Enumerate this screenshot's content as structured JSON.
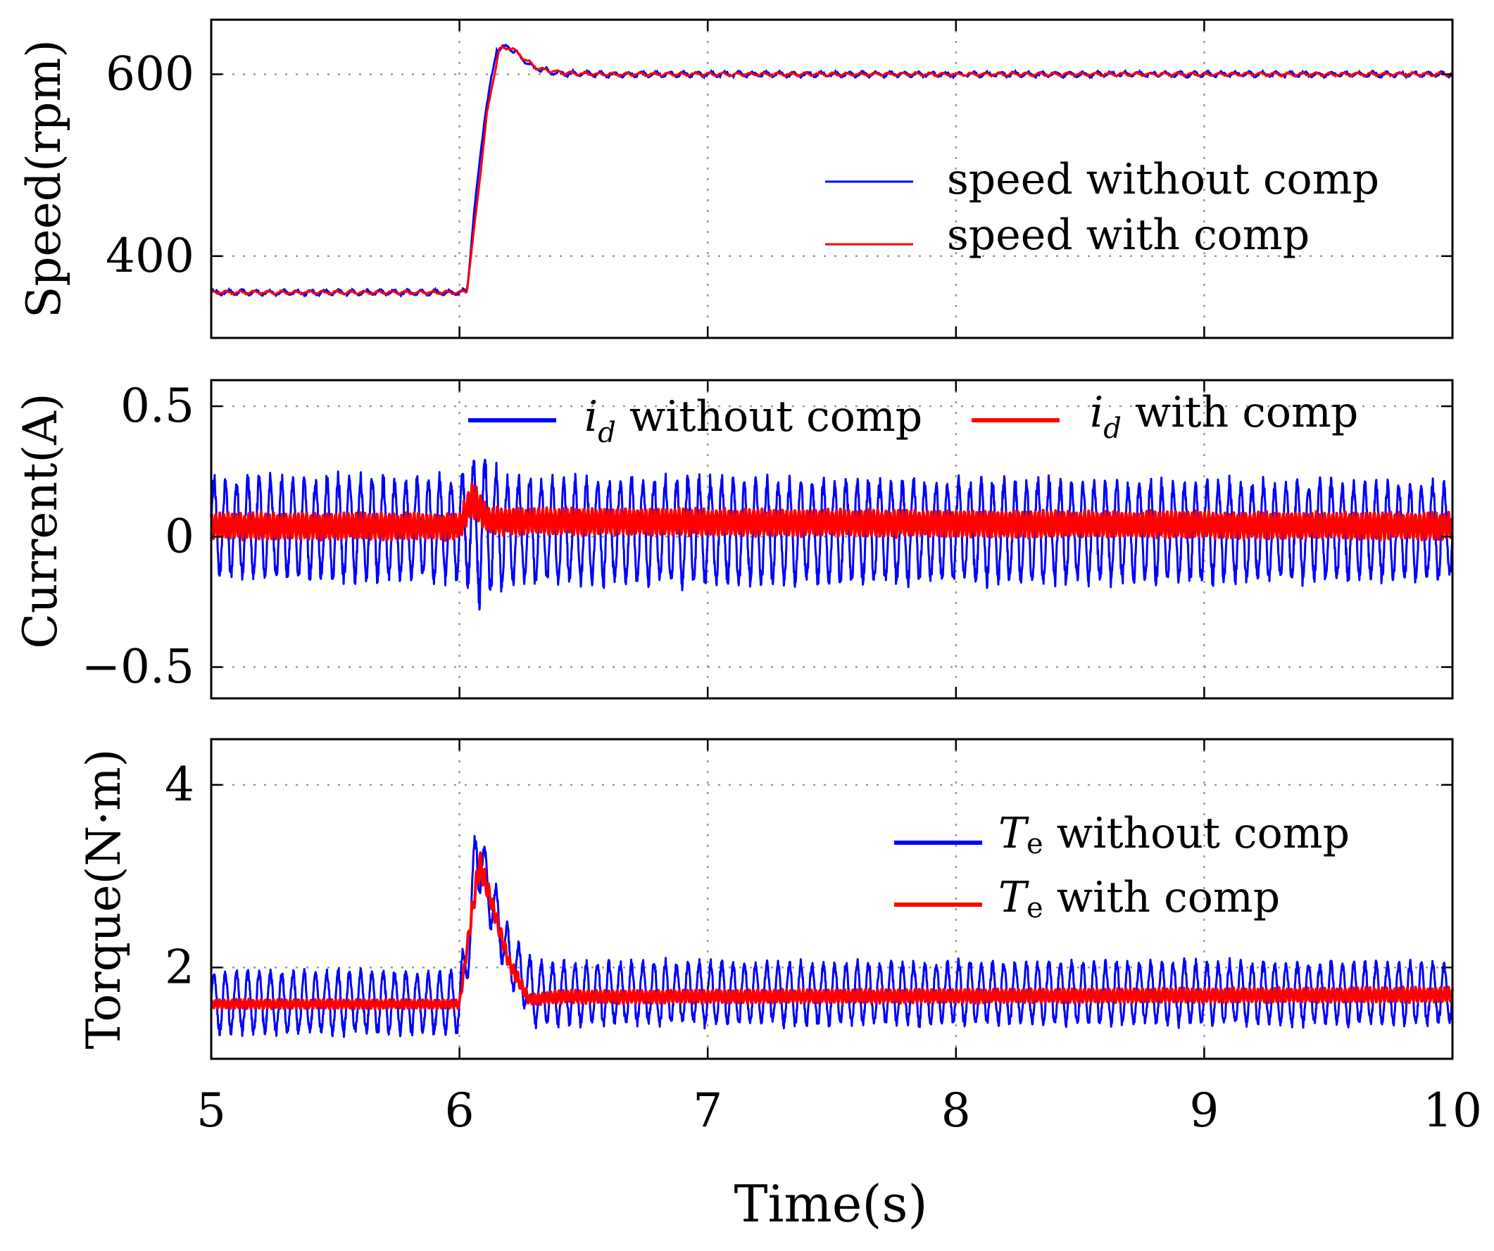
{
  "figure": {
    "xaxis": {
      "label": "Time(s)",
      "range": [
        5,
        10
      ],
      "ticks": [
        5,
        6,
        7,
        8,
        9,
        10
      ],
      "tick_labels": [
        "5",
        "6",
        "7",
        "8",
        "9",
        "10"
      ]
    }
  },
  "chart_data": [
    {
      "type": "line",
      "panel": "speed",
      "ylabel": "Speed(rpm)",
      "ylim": [
        310,
        660
      ],
      "yticks": [
        400,
        600
      ],
      "ytick_labels": [
        "400",
        "600"
      ],
      "grid": true,
      "legend": {
        "placement": "middle-right",
        "entries": [
          {
            "label": "speed without comp",
            "color": "#0000ff"
          },
          {
            "label": "speed with comp",
            "color": "#ff0000"
          }
        ]
      },
      "series": [
        {
          "name": "speed without comp",
          "color": "#0000ff",
          "points": [
            [
              5.0,
              360
            ],
            [
              6.0,
              360
            ],
            [
              6.03,
              362
            ],
            [
              6.06,
              450
            ],
            [
              6.1,
              550
            ],
            [
              6.15,
              628
            ],
            [
              6.2,
              630
            ],
            [
              6.25,
              618
            ],
            [
              6.3,
              607
            ],
            [
              6.4,
              601
            ],
            [
              6.6,
              600
            ],
            [
              10.0,
              600
            ]
          ],
          "ripple": 2.5
        },
        {
          "name": "speed with comp",
          "color": "#ff0000",
          "points": [
            [
              5.0,
              360
            ],
            [
              6.0,
              360
            ],
            [
              6.03,
              362
            ],
            [
              6.07,
              455
            ],
            [
              6.11,
              555
            ],
            [
              6.16,
              628
            ],
            [
              6.21,
              629
            ],
            [
              6.26,
              617
            ],
            [
              6.32,
              606
            ],
            [
              6.42,
              601
            ],
            [
              6.6,
              600
            ],
            [
              10.0,
              600
            ]
          ],
          "ripple": 1.5
        }
      ]
    },
    {
      "type": "line",
      "panel": "current",
      "ylabel": "Current(A)",
      "ylim": [
        -0.62,
        0.6
      ],
      "yticks": [
        -0.5,
        0,
        0.5
      ],
      "ytick_labels": [
        "−0.5",
        "0",
        "0.5"
      ],
      "grid": true,
      "legend": {
        "placement": "top",
        "entries": [
          {
            "symbol": "i",
            "subscript": "d",
            "label": " without comp",
            "color": "#0000ff"
          },
          {
            "symbol": "i",
            "subscript": "d",
            "label": " with comp",
            "color": "#ff0000"
          }
        ]
      },
      "series": [
        {
          "name": "i_d without comp",
          "color": "#0000ff",
          "envelope": [
            [
              5.0,
              0.03,
              0.2
            ],
            [
              6.0,
              0.03,
              0.2
            ],
            [
              6.05,
              0.04,
              0.26
            ],
            [
              6.08,
              0.04,
              0.3
            ],
            [
              6.2,
              0.02,
              0.21
            ],
            [
              10.0,
              0.02,
              0.19
            ]
          ],
          "carrier_hz": 22
        },
        {
          "name": "i_d with comp",
          "color": "#ff0000",
          "envelope": [
            [
              5.0,
              0.04,
              0.05
            ],
            [
              6.0,
              0.04,
              0.05
            ],
            [
              6.05,
              0.14,
              0.07
            ],
            [
              6.12,
              0.06,
              0.05
            ],
            [
              10.0,
              0.04,
              0.05
            ]
          ],
          "carrier_hz": 60
        }
      ]
    },
    {
      "type": "line",
      "panel": "torque",
      "ylabel": "Torque(N·m)",
      "ylim": [
        1.0,
        4.5
      ],
      "yticks": [
        2,
        4
      ],
      "ytick_labels": [
        "2",
        "4"
      ],
      "grid": true,
      "legend": {
        "placement": "middle-right",
        "entries": [
          {
            "symbol": "T",
            "subscript": "e",
            "label": " without comp",
            "color": "#0000ff"
          },
          {
            "symbol": "T",
            "subscript": "e",
            "label": " with comp",
            "color": "#ff0000"
          }
        ]
      },
      "series": [
        {
          "name": "T_e without comp",
          "color": "#0000ff",
          "envelope": [
            [
              5.0,
              1.62,
              0.35
            ],
            [
              6.0,
              1.62,
              0.35
            ],
            [
              6.04,
              2.3,
              0.3
            ],
            [
              6.07,
              3.35,
              0.5
            ],
            [
              6.1,
              3.0,
              0.35
            ],
            [
              6.2,
              2.1,
              0.3
            ],
            [
              6.3,
              1.72,
              0.35
            ],
            [
              10.0,
              1.72,
              0.35
            ]
          ],
          "carrier_hz": 22
        },
        {
          "name": "T_e with comp",
          "color": "#ff0000",
          "envelope": [
            [
              5.0,
              1.6,
              0.05
            ],
            [
              6.0,
              1.6,
              0.05
            ],
            [
              6.04,
              2.4,
              0.08
            ],
            [
              6.08,
              3.15,
              0.15
            ],
            [
              6.12,
              2.8,
              0.1
            ],
            [
              6.2,
              2.05,
              0.08
            ],
            [
              6.28,
              1.65,
              0.06
            ],
            [
              6.4,
              1.68,
              0.07
            ],
            [
              10.0,
              1.7,
              0.08
            ]
          ],
          "carrier_hz": 60
        }
      ]
    }
  ]
}
